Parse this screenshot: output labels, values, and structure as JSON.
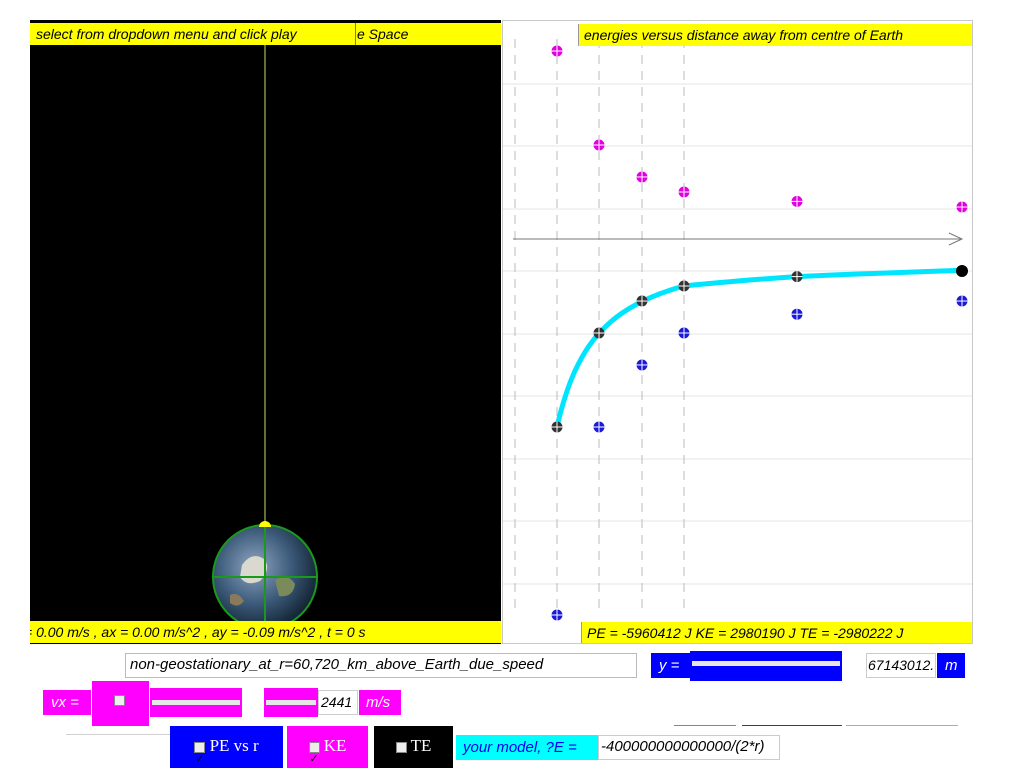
{
  "sim": {
    "status_left": "select from dropdown menu and click play",
    "status_left_title": "e Space",
    "bottom_left": "= 0.00 m/s , ax = 0.00 m/s^2 , ay = -0.09 m/s^2 , t = 0 s"
  },
  "graph": {
    "title": "energies versus distance away from centre of Earth",
    "readout": "PE = -5960412 J KE = 2980190 J TE = -2980222 J"
  },
  "chart_data": {
    "type": "scatter",
    "title": "energies versus distance away from centre of Earth",
    "xlabel": "",
    "ylabel": "",
    "x_unit": "index",
    "series": [
      {
        "name": "KE",
        "color": "#e000e0",
        "x": [
          1,
          2,
          3,
          4,
          5,
          6
        ],
        "values": [
          1.0,
          0.5,
          0.33,
          0.25,
          0.2,
          0.17
        ]
      },
      {
        "name": "TE",
        "color": "#333333",
        "x": [
          1,
          2,
          3,
          4,
          5,
          6
        ],
        "values": [
          -1.0,
          -0.5,
          -0.33,
          -0.25,
          -0.2,
          -0.17
        ]
      },
      {
        "name": "PE",
        "color": "#1a1ad8",
        "x": [
          1,
          2,
          3,
          4,
          5,
          6
        ],
        "values": [
          -2.0,
          -1.0,
          -0.67,
          -0.5,
          -0.4,
          -0.33
        ]
      }
    ],
    "model_curve_color": "#00e5ff",
    "grid": true,
    "axis_arrow": true
  },
  "controls": {
    "scenario_value": "non-geostationary_at_r=60,720_km_above_Earth_due_speed",
    "y_label": "y =",
    "y_value": "67143012.",
    "y_unit": "m",
    "vx_label": "vx =",
    "vx_value": "2441",
    "vx_unit": "m/s",
    "pe_toggle": "PE vs r",
    "ke_toggle": "KE",
    "te_toggle": "TE",
    "model_label": "your model, ?E =",
    "model_value": "-400000000000000/(2*r)"
  },
  "colors": {
    "yellow": "#ffff00",
    "blue": "#0000ff",
    "magenta": "#ff00ff",
    "cyan": "#00ffff",
    "black": "#000000"
  }
}
